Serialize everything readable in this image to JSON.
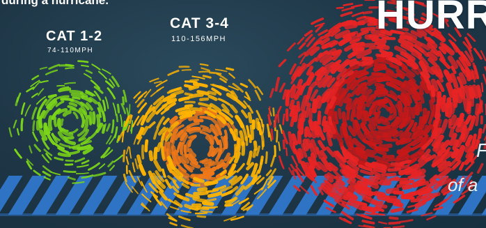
{
  "header": {
    "top_line": "during a hurricane.",
    "title_partial": "HURR"
  },
  "categories": [
    {
      "title": "CAT 1-2",
      "speed": "74-110MPH"
    },
    {
      "title": "CAT 3-4",
      "speed": "110-156MPH"
    }
  ],
  "side_caption": {
    "line1": "F",
    "line2": "of a"
  },
  "colors": {
    "background": "#1e3646",
    "stripe": "#2e73c4",
    "cat12": "#7cd618",
    "cat34": "#ffb400",
    "cat34_inner": "#f07818",
    "cat5": "#e82424"
  }
}
